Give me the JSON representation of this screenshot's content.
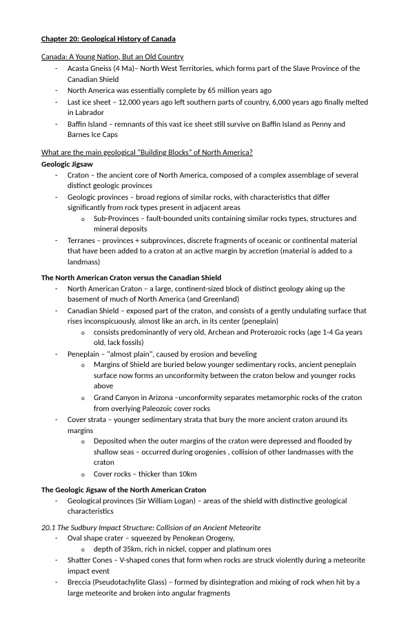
{
  "title": "Chapter 20: Geological History of Canada",
  "s1": {
    "heading": "Canada: A Young Nation, But an Old Country",
    "items": [
      "Acasta Gneiss (4 Ma)– North West Territories, which forms part of the Slave Province of the Canadian Shield",
      "North America was essentially complete by 65 million years ago",
      "Last ice sheet – 12,000 years ago left southern parts of country, 6,000 years ago finally melted in Labrador",
      "Baffin Island – remnants of this vast ice sheet still survive on Baffin Island as Penny and Barnes Ice Caps"
    ]
  },
  "s2": {
    "heading": "What are the main geological \"Building Blocks\" of North America?",
    "sub": "Geologic Jigsaw",
    "i0": "Craton – the ancient core of North America, composed of a complex assemblage of several distinct geologic provinces",
    "i1": "Geologic provinces – broad regions of similar rocks, with characteristics that differ significantly from rock types present in adjacent areas",
    "i1a": "Sub-Provinces – fault-bounded units containing similar rocks types, structures and mineral deposits",
    "i2": "Terranes – provinces + subprovinces, discrete fragments of oceanic or continental material that have been added to a craton at an active margin by accretion (material is added to a landmass)"
  },
  "s3": {
    "heading": "The North American Craton versus the Canadian Shield",
    "i0": "North American Craton – a large, continent-sized block of distinct geology aking up the basement of much of North America (and Greenland)",
    "i1": "Canadian Shield – exposed part of the craton, and consists of a gently undulating surface that rises inconspicuously, almost like an arch, in its center (peneplain)",
    "i1a": "consists predominantly of very old, Archean and Proterozoic rocks (age 1-4 Ga years old, lack fossils)",
    "i2": "Peneplain –  \"almost plain\", caused by erosion and beveling",
    "i2a": "Margins of Shield are buried below younger sedimentary rocks, ancient peneplain surface now forms an unconformity between the craton below and younger rocks above",
    "i2b": "Grand Canyon in Arizona –unconformity separates metamorphic rocks of the craton from overlying Paleozoic cover rocks",
    "i3": "Cover strata – younger sedimentary strata that bury the more  ancient craton around its margins",
    "i3a": "Deposited when the outer margins of the craton were depressed and flooded by shallow seas – occurred during orogenies , collision of other landmasses with the craton",
    "i3b": "Cover rocks – thicker than 10km"
  },
  "s4": {
    "heading": "The Geologic Jigsaw of the North American Craton",
    "i0": "Geological provinces (Sir William Logan) – areas of the shield with distinctive geological characteristics"
  },
  "s5": {
    "heading": "20.1 The Sudbury Impact Structure: Collision of an Ancient Meteorite",
    "i0": "Oval shape crater – squeezed by Penokean Orogeny,",
    "i0a": "depth of 35km, rich in nickel, copper and platinum ores",
    "i1": "Shatter Cones – V-shaped cones that form when rocks are struck violently during a meteorite impact event",
    "i2": "Breccia (Pseudotachylite Glass) – formed by disintegration and mixing of rock when hit by a large meteorite and broken into angular fragments"
  }
}
